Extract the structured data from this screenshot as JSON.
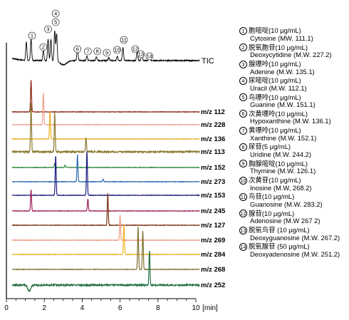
{
  "chart_data": {
    "type": "line",
    "x_unit": "[min]",
    "xlim": [
      0,
      10
    ],
    "x_ticks": [
      0,
      2,
      4,
      6,
      8,
      10
    ],
    "tic_label": "TIC",
    "tic_peak_markers": [
      {
        "n": "①",
        "x": 1.3
      },
      {
        "n": "②",
        "x": 1.95
      },
      {
        "n": "③",
        "x": 2.2
      },
      {
        "n": "④",
        "x": 2.55
      },
      {
        "n": "⑤",
        "x": 2.65
      },
      {
        "n": "⑥",
        "x": 3.75
      },
      {
        "n": "⑦",
        "x": 4.25
      },
      {
        "n": "⑧",
        "x": 4.75
      },
      {
        "n": "⑨",
        "x": 5.4
      },
      {
        "n": "⑩",
        "x": 5.85
      },
      {
        "n": "⑪",
        "x": 6.15
      },
      {
        "n": "⑫",
        "x": 6.9
      },
      {
        "n": "⑬",
        "x": 7.15
      },
      {
        "n": "⑭",
        "x": 7.55
      }
    ],
    "series": [
      {
        "name": "m/z 112",
        "color": "#8b2a16",
        "peaks": [
          [
            1.3,
            1.0
          ]
        ]
      },
      {
        "name": "m/z 228",
        "color": "#f2a090",
        "peaks": [
          [
            1.95,
            1.0
          ]
        ]
      },
      {
        "name": "m/z 136",
        "color": "#e8b020",
        "peaks": [
          [
            2.3,
            1.0
          ]
        ]
      },
      {
        "name": "m/z 113",
        "color": "#8a7a30",
        "peaks": [
          [
            1.3,
            0.9
          ],
          [
            2.55,
            0.7
          ],
          [
            4.2,
            0.25
          ]
        ]
      },
      {
        "name": "m/z 152",
        "color": "#2a8a3a",
        "peaks": [
          [
            2.55,
            0.25
          ],
          [
            3.1,
            0.15
          ]
        ]
      },
      {
        "name": "m/z 273",
        "color": "#2a6ab0",
        "peaks": [
          [
            3.75,
            1.0
          ],
          [
            5.1,
            0.1
          ]
        ]
      },
      {
        "name": "m/z 153",
        "color": "#1a1a80",
        "peaks": [
          [
            2.6,
            0.9
          ],
          [
            4.25,
            1.0
          ]
        ]
      },
      {
        "name": "m/z 245",
        "color": "#a0205a",
        "peaks": [
          [
            1.3,
            0.8
          ],
          [
            4.3,
            0.45
          ]
        ]
      },
      {
        "name": "m/z 127",
        "color": "#7a3010",
        "peaks": [
          [
            5.35,
            1.0
          ]
        ]
      },
      {
        "name": "m/z 269",
        "color": "#f09a80",
        "peaks": [
          [
            6.0,
            1.0
          ]
        ]
      },
      {
        "name": "m/z 284",
        "color": "#f0b020",
        "peaks": [
          [
            6.2,
            1.0
          ]
        ]
      },
      {
        "name": "m/z 268",
        "color": "#807030",
        "peaks": [
          [
            6.95,
            1.0
          ],
          [
            7.2,
            0.9
          ]
        ]
      },
      {
        "name": "m/z 252",
        "color": "#207040",
        "peaks": [
          [
            7.55,
            1.0
          ]
        ]
      }
    ]
  },
  "legend": [
    {
      "n": "①",
      "cn": "胞嘧啶(10 μg/mL)",
      "en": "Cytosine (MW. 111.1)"
    },
    {
      "n": "②",
      "cn": "脱氧胞苷(10 μg/mL)",
      "en": "Deoxycytidine (M.W. 227.2)"
    },
    {
      "n": "③",
      "cn": "腺嘌呤(10 μg/mL)",
      "en": "Adenine (M.W. 135.1)"
    },
    {
      "n": "④",
      "cn": "尿嘧啶(10 μg/mL)",
      "en": "Uracil (M.W. 112.1)"
    },
    {
      "n": "⑤",
      "cn": "鸟嘌呤(10 μg/mL)",
      "en": "Guanine (M.W. 151.1)"
    },
    {
      "n": "⑥",
      "cn": "次黄嘌呤(10 μg/mL)",
      "en": "Hypoxanthine (M.W. 136.1)"
    },
    {
      "n": "⑦",
      "cn": "黄嘌呤(10 μg/mL)",
      "en": "Xanthine (M.W. 152.1)"
    },
    {
      "n": "⑧",
      "cn": "尿苷(5 μg/mL)",
      "en": "Uridine (M.W. 244.2)"
    },
    {
      "n": "⑨",
      "cn": "胸腺嘧啶(10 μg/mL)",
      "en": "Thymine (M.W. 126.1)"
    },
    {
      "n": "⑩",
      "cn": "次黄苷(10 μg/mL)",
      "en": "Inosine (M.W, 268.2)"
    },
    {
      "n": "⑪",
      "cn": "鸟苷(10 μg/mL)",
      "en": "Guanosine (M.W. 283.2)"
    },
    {
      "n": "⑫",
      "cn": "腺苷(10 μg/mL)",
      "en": "Adenosine (M.W 267 2)"
    },
    {
      "n": "⑬",
      "cn": "脱氧鸟苷 (10 μg/mL)",
      "en": "Deoxyguanosine (M.W. 267.2)"
    },
    {
      "n": "⑭",
      "cn": "脱氧腺苷 (50 μg/mL)",
      "en": "Deoxyadenosine (M.W. 251.2)"
    }
  ]
}
